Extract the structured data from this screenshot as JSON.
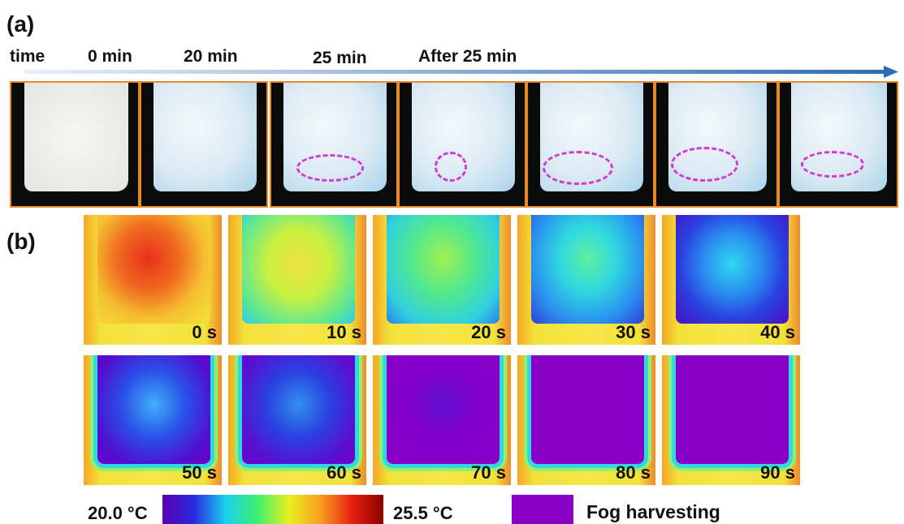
{
  "panel_a": {
    "label": "(a)",
    "time_label": "time",
    "times": [
      "0 min",
      "20 min",
      "25 min",
      "After 25 min"
    ]
  },
  "panel_b": {
    "label": "(b)",
    "frames": [
      "0 s",
      "10 s",
      "20 s",
      "30 s",
      "40 s",
      "50 s",
      "60 s",
      "70 s",
      "80 s",
      "90 s"
    ],
    "colorbar": {
      "min_label": "20.0 °C",
      "max_label": "25.5 °C"
    },
    "legend": "Fog harvesting"
  }
}
